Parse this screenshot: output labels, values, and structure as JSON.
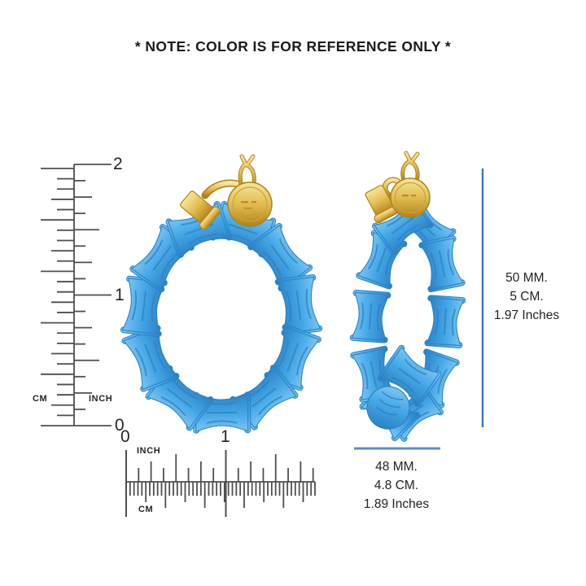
{
  "note": "* NOTE: COLOR IS FOR REFERENCE ONLY *",
  "rulers": {
    "vertical": {
      "inch_marks": [
        "2",
        "1",
        "0"
      ],
      "left_unit": "CM",
      "right_unit": "INCH"
    },
    "horizontal": {
      "inch_marks": [
        "0",
        "1"
      ],
      "top_unit": "INCH",
      "bottom_unit": "CM"
    }
  },
  "dimensions": {
    "height": {
      "mm": "50 MM.",
      "cm": "5 CM.",
      "inches": "1.97 Inches"
    },
    "width": {
      "mm": "48 MM.",
      "cm": "4.8 CM.",
      "inches": "1.89 Inches"
    }
  },
  "colors": {
    "earring_blue": "#45a8e6",
    "earring_blue_light": "#7cc5f0",
    "earring_blue_dark": "#2c82c6",
    "gold": "#e2bc4f",
    "gold_light": "#f7e59c",
    "gold_dark": "#b0821c",
    "dimension_line": "#3a76c5",
    "dimension_line_width": "#5d8cc6",
    "ruler_line": "#4f4f4f",
    "text": "#1f1f1f"
  }
}
